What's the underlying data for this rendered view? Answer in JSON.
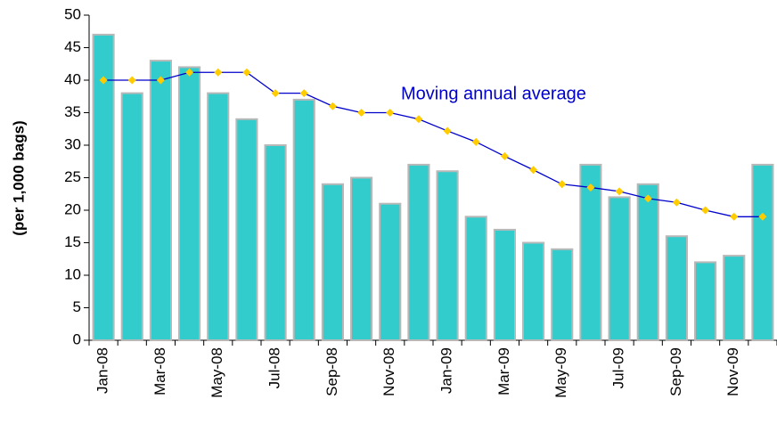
{
  "chart_data": {
    "type": "bar",
    "y_label": "(per 1,000 bags)",
    "categories": [
      "Jan-08",
      null,
      "Mar-08",
      null,
      "May-08",
      null,
      "Jul-08",
      null,
      "Sep-08",
      null,
      "Nov-08",
      null,
      "Jan-09",
      null,
      "Mar-09",
      null,
      "May-09",
      null,
      "Jul-09",
      null,
      "Sep-09",
      null,
      "Nov-09",
      null
    ],
    "series": [
      {
        "type": "bar",
        "color": "#33cccc",
        "values": [
          47,
          38,
          43,
          42,
          38,
          34,
          30,
          37,
          24,
          25,
          21,
          27,
          26,
          19,
          17,
          15,
          14,
          27,
          22,
          24,
          16,
          12,
          13,
          27
        ]
      },
      {
        "type": "line",
        "name": "Moving annual average",
        "color": "#0000cc",
        "marker_color": "#ffcc00",
        "values": [
          40,
          40,
          40,
          41.2,
          41.2,
          41.2,
          38,
          38,
          36,
          35,
          35,
          34,
          32.2,
          30.5,
          28.3,
          26.2,
          24,
          23.5,
          22.9,
          21.8,
          21.2,
          20,
          19,
          19
        ]
      }
    ],
    "ylim": [
      0,
      50
    ],
    "yticks": [
      0,
      5,
      10,
      15,
      20,
      25,
      30,
      35,
      40,
      45,
      50
    ]
  }
}
